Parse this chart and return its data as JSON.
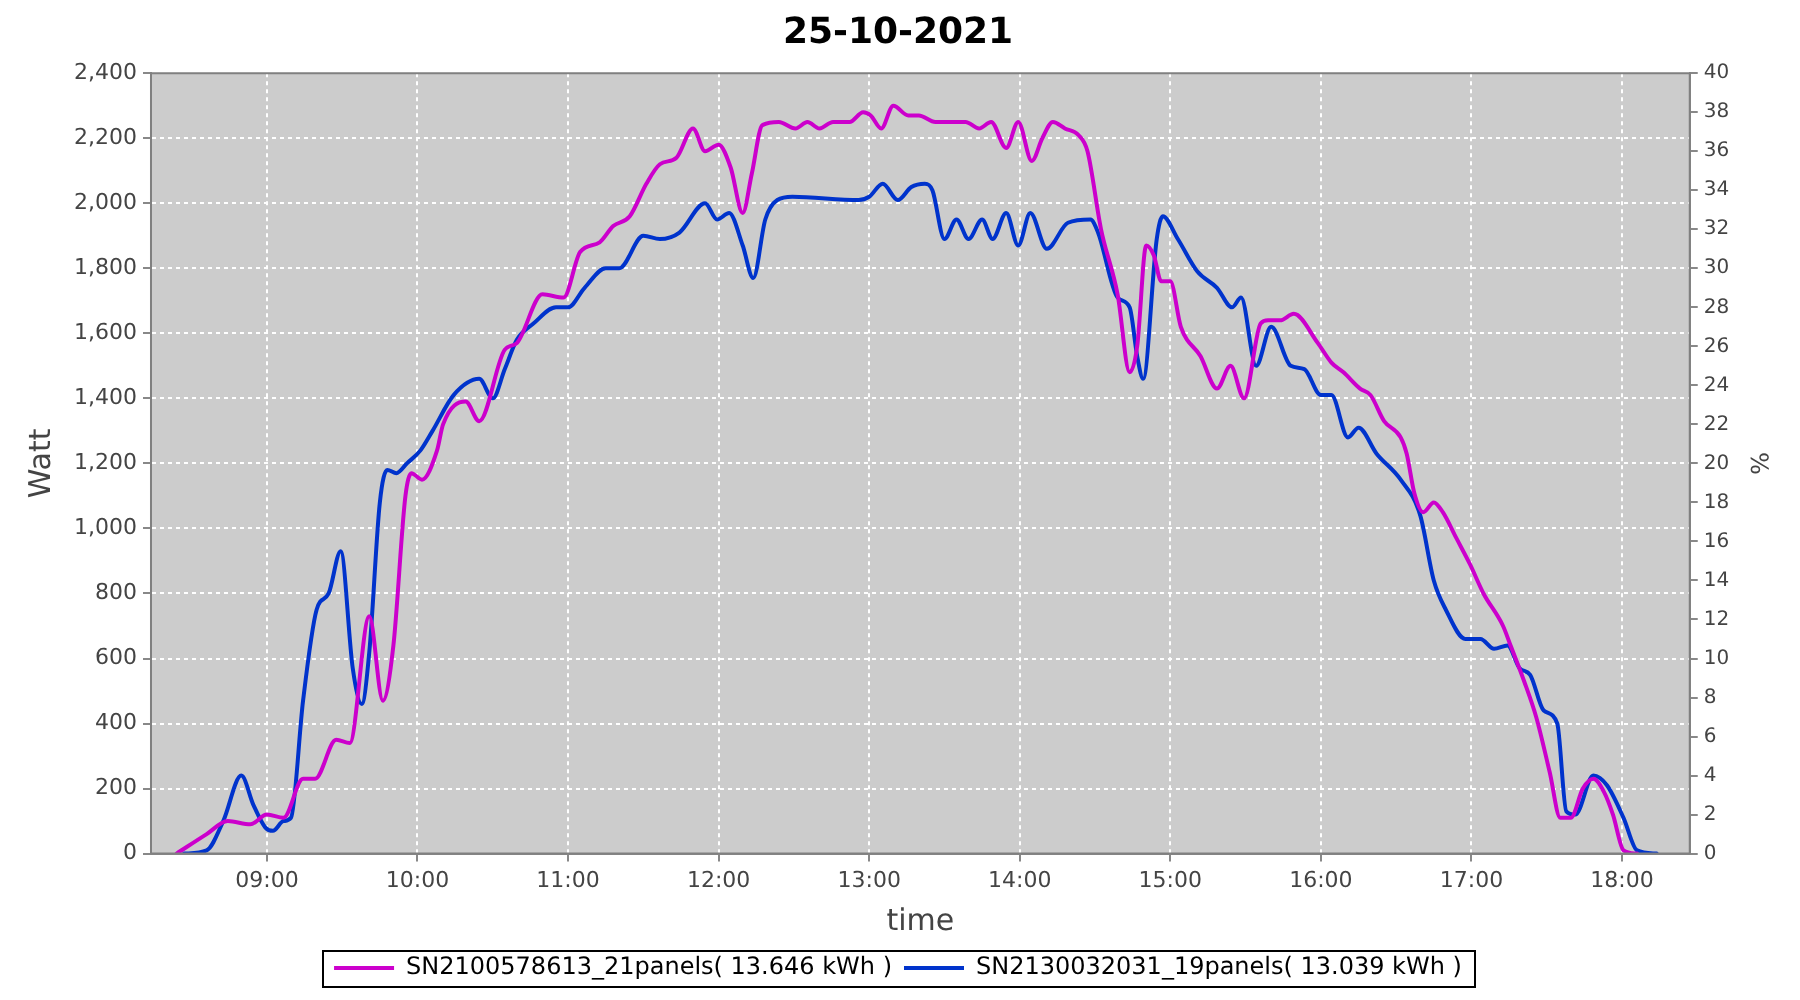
{
  "chart_data": {
    "type": "line",
    "title": "25-10-2021",
    "xlabel": "time",
    "ylabel": "Watt",
    "y2label": "%",
    "xlim": [
      8.23,
      18.45
    ],
    "xticks": [
      {
        "value": 9,
        "label": "09:00"
      },
      {
        "value": 10,
        "label": "10:00"
      },
      {
        "value": 11,
        "label": "11:00"
      },
      {
        "value": 12,
        "label": "12:00"
      },
      {
        "value": 13,
        "label": "13:00"
      },
      {
        "value": 14,
        "label": "14:00"
      },
      {
        "value": 15,
        "label": "15:00"
      },
      {
        "value": 16,
        "label": "16:00"
      },
      {
        "value": 17,
        "label": "17:00"
      },
      {
        "value": 18,
        "label": "18:00"
      }
    ],
    "ylim": [
      0,
      2400
    ],
    "yticks": [
      0,
      200,
      400,
      600,
      800,
      {
        "value": 1000,
        "label": "1,000"
      },
      {
        "value": 1200,
        "label": "1,200"
      },
      {
        "value": 1400,
        "label": "1,400"
      },
      {
        "value": 1600,
        "label": "1,600"
      },
      {
        "value": 1800,
        "label": "1,800"
      },
      {
        "value": 2000,
        "label": "2,000"
      },
      {
        "value": 2200,
        "label": "2,200"
      },
      {
        "value": 2400,
        "label": "2,400"
      }
    ],
    "y2lim": [
      0,
      40
    ],
    "y2ticks": [
      0,
      2,
      4,
      6,
      8,
      10,
      12,
      14,
      16,
      18,
      20,
      22,
      24,
      26,
      28,
      30,
      32,
      34,
      36,
      38,
      40
    ],
    "grid": true,
    "legend": "bottom",
    "series": [
      {
        "name": "SN2100578613_21panels( 13.646 kWh )",
        "color": "#cc00cc",
        "x": [
          8.4,
          8.6,
          8.74,
          8.89,
          9.0,
          9.11,
          9.24,
          9.32,
          9.46,
          9.55,
          9.68,
          9.77,
          9.84,
          9.92,
          9.96,
          10.03,
          10.13,
          10.17,
          10.32,
          10.41,
          10.58,
          10.66,
          10.83,
          10.97,
          11.08,
          11.21,
          11.3,
          11.41,
          11.52,
          11.61,
          11.72,
          11.83,
          11.91,
          12.0,
          12.08,
          12.16,
          12.22,
          12.29,
          12.4,
          12.51,
          12.59,
          12.67,
          12.76,
          12.87,
          12.96,
          13.01,
          13.08,
          13.16,
          13.26,
          13.33,
          13.44,
          13.64,
          13.73,
          13.81,
          13.91,
          13.99,
          14.08,
          14.15,
          14.22,
          14.3,
          14.39,
          14.45,
          14.54,
          14.65,
          14.73,
          14.78,
          14.84,
          14.89,
          14.94,
          15.0,
          15.07,
          15.2,
          15.31,
          15.4,
          15.49,
          15.6,
          15.65,
          15.73,
          15.82,
          15.98,
          16.07,
          16.15,
          16.26,
          16.33,
          16.42,
          16.53,
          16.57,
          16.62,
          16.68,
          16.75,
          16.81,
          16.9,
          16.99,
          17.08,
          17.21,
          17.26,
          17.35,
          17.43,
          17.52,
          17.59,
          17.66,
          17.74,
          17.81,
          17.88,
          17.94,
          18.01,
          18.1
        ],
        "values": [
          0,
          60,
          100,
          90,
          120,
          110,
          230,
          230,
          350,
          340,
          730,
          470,
          640,
          1100,
          1170,
          1150,
          1240,
          1320,
          1390,
          1330,
          1550,
          1570,
          1720,
          1710,
          1850,
          1880,
          1930,
          1960,
          2060,
          2120,
          2140,
          2230,
          2160,
          2180,
          2110,
          1970,
          2090,
          2240,
          2250,
          2230,
          2250,
          2230,
          2250,
          2250,
          2280,
          2270,
          2230,
          2300,
          2270,
          2270,
          2250,
          2250,
          2230,
          2250,
          2170,
          2250,
          2130,
          2200,
          2250,
          2230,
          2210,
          2160,
          1920,
          1720,
          1480,
          1560,
          1870,
          1840,
          1760,
          1760,
          1620,
          1530,
          1430,
          1500,
          1400,
          1630,
          1640,
          1640,
          1660,
          1570,
          1510,
          1480,
          1430,
          1410,
          1330,
          1280,
          1230,
          1110,
          1050,
          1080,
          1050,
          970,
          890,
          800,
          700,
          640,
          530,
          420,
          250,
          110,
          110,
          200,
          230,
          190,
          120,
          10,
          0
        ]
      },
      {
        "name": "SN2130032031_19panels( 13.039 kWh )",
        "color": "#0033cc",
        "x": [
          8.45,
          8.6,
          8.71,
          8.83,
          8.91,
          8.99,
          9.04,
          9.11,
          9.16,
          9.24,
          9.33,
          9.41,
          9.49,
          9.57,
          9.63,
          9.68,
          9.75,
          9.8,
          9.86,
          9.93,
          10.02,
          10.1,
          10.24,
          10.41,
          10.5,
          10.58,
          10.66,
          10.77,
          10.92,
          11.0,
          11.11,
          11.25,
          11.34,
          11.5,
          11.61,
          11.74,
          11.91,
          11.99,
          12.07,
          12.16,
          12.23,
          12.31,
          12.39,
          12.49,
          12.93,
          13.0,
          13.09,
          13.19,
          13.28,
          13.37,
          13.42,
          13.5,
          13.58,
          13.66,
          13.75,
          13.82,
          13.91,
          13.99,
          14.07,
          14.18,
          14.32,
          14.47,
          14.52,
          14.65,
          14.73,
          14.78,
          14.82,
          14.91,
          14.95,
          15.05,
          15.18,
          15.31,
          15.41,
          15.47,
          15.57,
          15.67,
          15.8,
          15.89,
          16.0,
          16.07,
          16.18,
          16.25,
          16.37,
          16.53,
          16.66,
          16.75,
          16.83,
          16.96,
          17.06,
          17.15,
          17.24,
          17.32,
          17.39,
          17.48,
          17.57,
          17.63,
          17.69,
          17.81,
          17.9,
          18.01,
          18.1,
          18.23
        ],
        "values": [
          0,
          10,
          100,
          240,
          150,
          80,
          70,
          100,
          110,
          470,
          750,
          800,
          930,
          570,
          460,
          620,
          1080,
          1180,
          1170,
          1200,
          1240,
          1300,
          1410,
          1460,
          1400,
          1490,
          1580,
          1630,
          1680,
          1680,
          1740,
          1800,
          1800,
          1900,
          1890,
          1910,
          2000,
          1950,
          1970,
          1870,
          1770,
          1950,
          2010,
          2020,
          2010,
          2020,
          2060,
          2010,
          2050,
          2060,
          2040,
          1890,
          1950,
          1890,
          1950,
          1890,
          1970,
          1870,
          1970,
          1860,
          1940,
          1950,
          1910,
          1710,
          1680,
          1530,
          1460,
          1890,
          1960,
          1890,
          1790,
          1740,
          1680,
          1710,
          1500,
          1620,
          1500,
          1490,
          1410,
          1410,
          1280,
          1310,
          1230,
          1150,
          1040,
          840,
          750,
          660,
          660,
          630,
          640,
          570,
          550,
          440,
          400,
          130,
          120,
          240,
          210,
          110,
          10,
          0
        ]
      }
    ]
  }
}
